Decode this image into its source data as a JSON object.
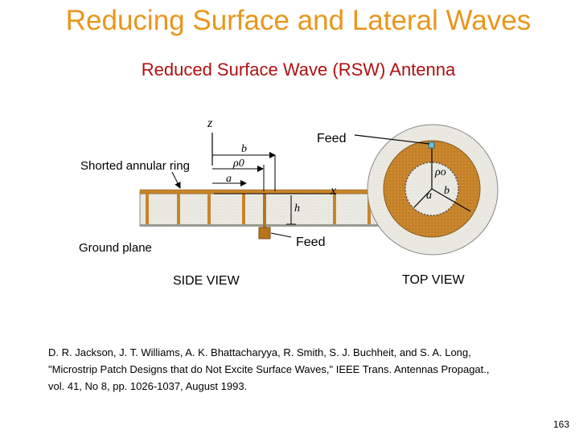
{
  "slide": {
    "title": "Reducing Surface and Lateral Waves",
    "subtitle": "Reduced Surface Wave (RSW) Antenna",
    "page_number": "163"
  },
  "diagram": {
    "labels": {
      "z_axis": "z",
      "x_axis": "x",
      "feed_top": "Feed",
      "feed_bottom": "Feed",
      "shorted_ring": "Shorted annular ring",
      "ground_plane": "Ground plane",
      "b_side": "b",
      "rho0_side": "ρ0",
      "a_side": "a",
      "h": "h",
      "rho0_top": "ρo",
      "a_top": "a",
      "b_top": "b",
      "side_view": "SIDE VIEW",
      "top_view": "TOP VIEW"
    },
    "colors": {
      "title": "#E8961C",
      "subtitle": "#B01010",
      "patch": "#C8842A",
      "substrate": "#EDEDE6",
      "feed_probe": "#B8741C",
      "feed_point": "#6FC0D8"
    }
  },
  "reference": {
    "line1": "D. R. Jackson, J. T. Williams, A. K. Bhattacharyya, R. Smith, S. J. Buchheit, and S. A. Long,",
    "line2": "\"Microstrip Patch Designs that do Not Excite Surface Waves,\" IEEE Trans. Antennas Propagat.,",
    "line3": "vol. 41, No 8, pp. 1026-1037, August 1993."
  }
}
